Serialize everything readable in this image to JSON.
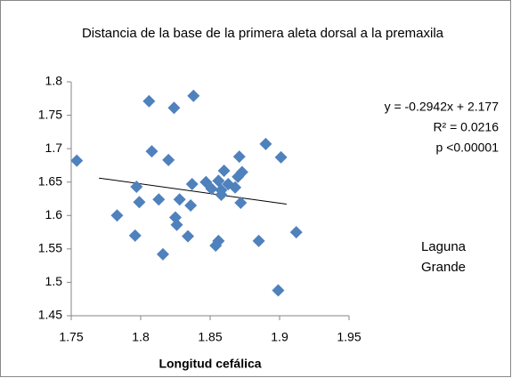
{
  "chart_data": {
    "type": "scatter",
    "title": "Distancia de la base de la primera aleta dorsal a la premaxila",
    "xlabel": "Longitud cefálica",
    "annotations": [
      "y = -0.2942x + 2.177",
      "R² = 0.0216",
      "p <0.00001"
    ],
    "location_label": "Laguna Grande",
    "color": "#4f81bd",
    "x": [
      1.754,
      1.783,
      1.796,
      1.797,
      1.799,
      1.806,
      1.808,
      1.813,
      1.816,
      1.82,
      1.824,
      1.825,
      1.826,
      1.828,
      1.834,
      1.836,
      1.837,
      1.838,
      1.847,
      1.851,
      1.854,
      1.856,
      1.856,
      1.858,
      1.858,
      1.86,
      1.863,
      1.868,
      1.87,
      1.871,
      1.872,
      1.873,
      1.885,
      1.89,
      1.899,
      1.901,
      1.912
    ],
    "values": [
      1.682,
      1.6,
      1.57,
      1.643,
      1.62,
      1.771,
      1.696,
      1.624,
      1.542,
      1.683,
      1.761,
      1.597,
      1.586,
      1.624,
      1.569,
      1.615,
      1.647,
      1.779,
      1.65,
      1.64,
      1.555,
      1.562,
      1.652,
      1.638,
      1.631,
      1.667,
      1.647,
      1.642,
      1.658,
      1.688,
      1.619,
      1.665,
      1.562,
      1.707,
      1.488,
      1.687,
      1.575
    ],
    "trendline": {
      "x": [
        1.77,
        1.905
      ],
      "y": [
        1.656,
        1.617
      ]
    },
    "xlim": [
      1.75,
      1.95
    ],
    "xticks": [
      1.75,
      1.8,
      1.85,
      1.9,
      1.95
    ],
    "ylim": [
      1.45,
      1.8
    ],
    "yticks": [
      1.45,
      1.5,
      1.55,
      1.6,
      1.65,
      1.7,
      1.75,
      1.8
    ]
  }
}
